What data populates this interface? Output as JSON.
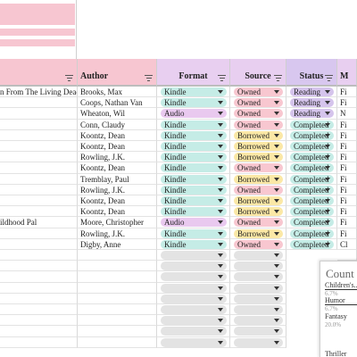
{
  "columns": {
    "title": {
      "label": ""
    },
    "author": {
      "label": "Author"
    },
    "format": {
      "label": "Format"
    },
    "source": {
      "label": "Source"
    },
    "status": {
      "label": "Status"
    },
    "extra": {
      "label": "M"
    }
  },
  "rows": [
    {
      "title": "n From The Living Dead",
      "author": "Brooks, Max",
      "format": "Kindle",
      "source": "Owned",
      "status": "Reading",
      "extra": "Fi"
    },
    {
      "title": "",
      "author": "Coops, Nathan Van",
      "format": "Kindle",
      "source": "Owned",
      "status": "Reading",
      "extra": "Fi"
    },
    {
      "title": "",
      "author": "Wheaton, Wil",
      "format": "Audio",
      "source": "Owned",
      "status": "Reading",
      "extra": "N"
    },
    {
      "title": "",
      "author": "Conn, Claudy",
      "format": "Kindle",
      "source": "Owned",
      "status": "Completed",
      "extra": "Fi"
    },
    {
      "title": "",
      "author": "Koontz, Dean",
      "format": "Kindle",
      "source": "Borrowed",
      "status": "Completed",
      "extra": "Fi"
    },
    {
      "title": "",
      "author": "Koontz, Dean",
      "format": "Kindle",
      "source": "Borrowed",
      "status": "Completed",
      "extra": "Fi"
    },
    {
      "title": "",
      "author": "Rowling, J.K.",
      "format": "Kindle",
      "source": "Borrowed",
      "status": "Completed",
      "extra": "Fi"
    },
    {
      "title": "",
      "author": "Koontz, Dean",
      "format": "Kindle",
      "source": "Owned",
      "status": "Completed",
      "extra": "Fi"
    },
    {
      "title": "",
      "author": "Tremblay, Paul",
      "format": "Kindle",
      "source": "Borrowed",
      "status": "Completed",
      "extra": "Fi"
    },
    {
      "title": "",
      "author": "Rowling, J.K.",
      "format": "Kindle",
      "source": "Owned",
      "status": "Completed",
      "extra": "Fi"
    },
    {
      "title": "",
      "author": "Koontz, Dean",
      "format": "Kindle",
      "source": "Borrowed",
      "status": "Completed",
      "extra": "Fi"
    },
    {
      "title": "",
      "author": "Koontz, Dean",
      "format": "Kindle",
      "source": "Borrowed",
      "status": "Completed",
      "extra": "Fi"
    },
    {
      "title": "ildhood Pal",
      "author": "Moore, Christopher",
      "format": "Audio",
      "source": "Owned",
      "status": "Completed",
      "extra": "Fi"
    },
    {
      "title": "",
      "author": "Rowling, J.K.",
      "format": "Kindle",
      "source": "Borrowed",
      "status": "Completed",
      "extra": "Fi"
    },
    {
      "title": "",
      "author": "Digby, Anne",
      "format": "Kindle",
      "source": "Owned",
      "status": "Completed",
      "extra": "Cl"
    }
  ],
  "empty_rows": 9,
  "colors": {
    "kindle": "#c5ece6",
    "audio": "#e9c9ef",
    "owned": "#f8c7d0",
    "borrowed": "#fbe8a6",
    "reading": "#d5c4ec",
    "completed": "#c5ece6",
    "empty": "#e3e3e3",
    "header_pink": "#f7c6d1",
    "header_lilac": "#e8cff0",
    "header_purple": "#d8c7ef"
  },
  "chart": {
    "title": "Count o",
    "labels": [
      {
        "text": "Children's...",
        "pct": "6.7%"
      },
      {
        "text": "Humor",
        "pct": "6.7%"
      },
      {
        "text": "Fantasy",
        "pct": "20.0%"
      },
      {
        "text": "Thriller",
        "pct": ""
      }
    ]
  }
}
